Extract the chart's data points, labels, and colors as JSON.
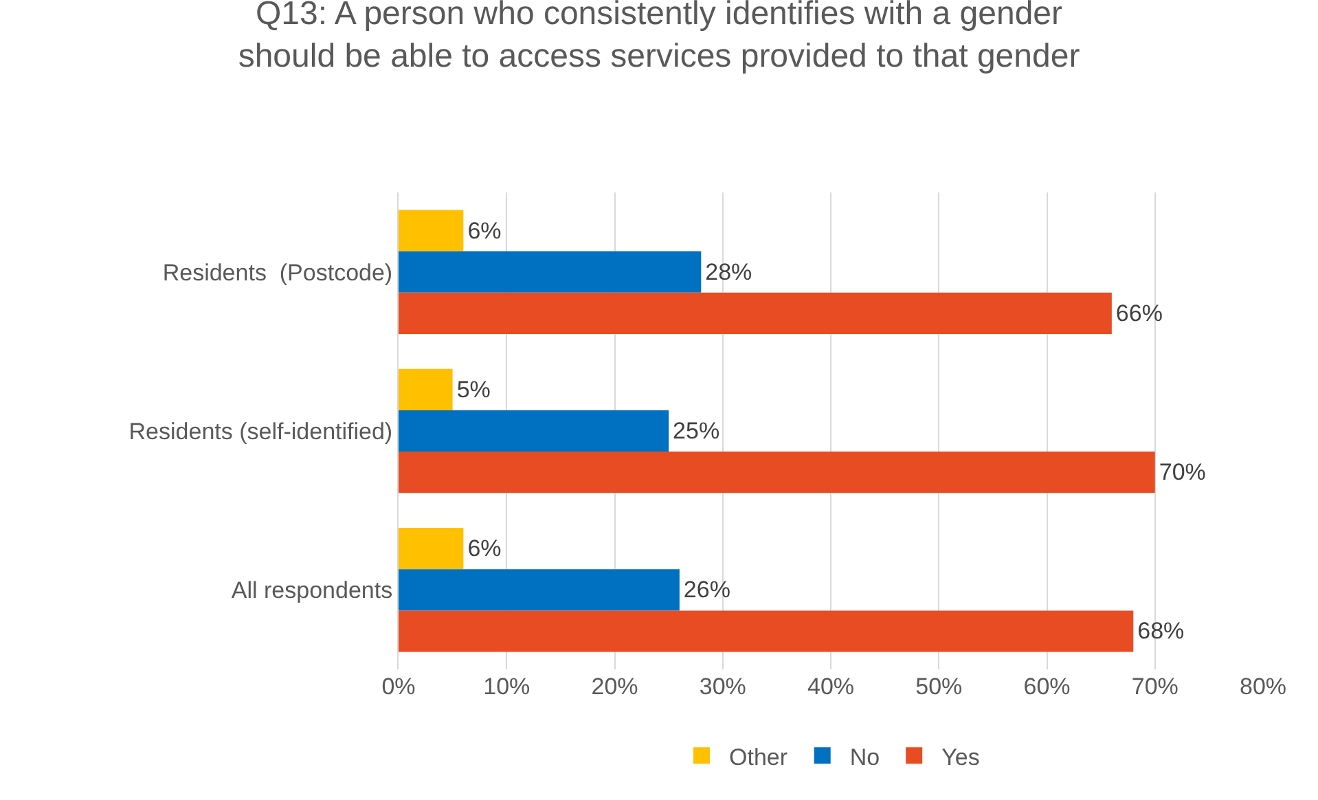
{
  "chart_data": {
    "type": "bar",
    "orientation": "horizontal",
    "title": "Q13: A person who consistently identifies with a gender should be able to access services provided to that gender",
    "categories": [
      "Residents  (Postcode)",
      "Residents (self-identified)",
      "All respondents"
    ],
    "series": [
      {
        "name": "Other",
        "color": "#ffc000",
        "values": [
          6,
          5,
          6
        ],
        "value_labels": [
          "6%",
          "5%",
          "6%"
        ]
      },
      {
        "name": "No",
        "color": "#0070c0",
        "values": [
          28,
          25,
          26
        ],
        "value_labels": [
          "28%",
          "25%",
          "26%"
        ]
      },
      {
        "name": "Yes",
        "color": "#e84c22",
        "values": [
          66,
          70,
          68
        ],
        "value_labels": [
          "66%",
          "70%",
          "68%"
        ]
      }
    ],
    "xlim": [
      0,
      80
    ],
    "xticks": [
      {
        "value": 0,
        "label": "0%"
      },
      {
        "value": 10,
        "label": "10%"
      },
      {
        "value": 20,
        "label": "20%"
      },
      {
        "value": 30,
        "label": "30%"
      },
      {
        "value": 40,
        "label": "40%"
      },
      {
        "value": 50,
        "label": "50%"
      },
      {
        "value": 60,
        "label": "60%"
      },
      {
        "value": 70,
        "label": "70%"
      },
      {
        "value": 80,
        "label": "80%"
      }
    ],
    "grid": "x",
    "legend": "bottom"
  }
}
